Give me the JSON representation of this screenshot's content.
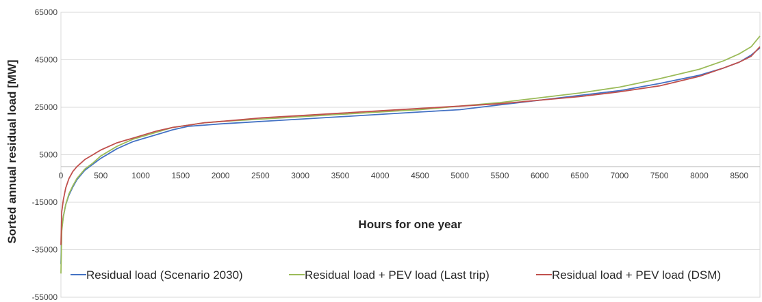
{
  "chart_data": {
    "type": "line",
    "xlabel": "Hours  for one year",
    "ylabel": "Sorted  annual residual load [MW]",
    "xlim": [
      0,
      8760
    ],
    "ylim": [
      -55000,
      65000
    ],
    "x_ticks": [
      0,
      500,
      1000,
      1500,
      2000,
      2500,
      3000,
      3500,
      4000,
      4500,
      5000,
      5500,
      6000,
      6500,
      7000,
      7500,
      8000,
      8500
    ],
    "y_ticks": [
      65000,
      45000,
      25000,
      5000,
      -15000,
      -35000,
      -55000
    ],
    "y_tick_labels": [
      "65000",
      "45000",
      "25000",
      "5000",
      "-15000",
      "-35000",
      "-55000"
    ],
    "grid": "horizontal",
    "legend_position": "bottom",
    "series": [
      {
        "name": "Residual load (Scenario 2030)",
        "color": "#4472C4",
        "x": [
          0,
          10,
          30,
          60,
          100,
          150,
          200,
          300,
          400,
          500,
          600,
          700,
          800,
          900,
          1000,
          1200,
          1400,
          1600,
          1800,
          2000,
          2500,
          3000,
          3500,
          4000,
          4500,
          5000,
          5500,
          6000,
          6500,
          7000,
          7500,
          8000,
          8300,
          8500,
          8650,
          8760
        ],
        "y": [
          -41000,
          -26000,
          -21000,
          -16000,
          -12000,
          -8500,
          -5500,
          -1500,
          1000,
          3500,
          5500,
          7500,
          9000,
          10500,
          11500,
          13500,
          15500,
          17000,
          17500,
          18000,
          19000,
          20000,
          21000,
          22000,
          23000,
          24000,
          26000,
          28000,
          30000,
          32000,
          35000,
          38500,
          41500,
          44000,
          47000,
          50000
        ]
      },
      {
        "name": "Residual load + PEV load (Last trip)",
        "color": "#9BBB59",
        "x": [
          0,
          10,
          30,
          60,
          100,
          150,
          200,
          300,
          400,
          500,
          600,
          700,
          800,
          900,
          1000,
          1200,
          1400,
          1600,
          1800,
          2000,
          2500,
          3000,
          3500,
          4000,
          4500,
          5000,
          5500,
          6000,
          6500,
          7000,
          7500,
          8000,
          8300,
          8500,
          8650,
          8760
        ],
        "y": [
          -45000,
          -27000,
          -21000,
          -16000,
          -11500,
          -8000,
          -5000,
          -1000,
          1500,
          4500,
          6500,
          8500,
          10000,
          11500,
          12500,
          14500,
          16500,
          17500,
          18500,
          19000,
          20000,
          21000,
          22000,
          23000,
          24000,
          25500,
          27000,
          29000,
          31000,
          33500,
          37000,
          41000,
          44500,
          47500,
          50500,
          55000
        ]
      },
      {
        "name": "Residual load + PEV load (DSM)",
        "color": "#C0504D",
        "x": [
          0,
          10,
          30,
          60,
          100,
          150,
          200,
          300,
          400,
          500,
          600,
          700,
          800,
          900,
          1000,
          1200,
          1400,
          1600,
          1800,
          2000,
          2500,
          3000,
          3500,
          4000,
          4500,
          5000,
          5500,
          6000,
          6500,
          7000,
          7500,
          8000,
          8300,
          8500,
          8650,
          8760
        ],
        "y": [
          -33000,
          -19000,
          -14000,
          -9000,
          -5000,
          -2000,
          0,
          3000,
          5000,
          7000,
          8500,
          10000,
          11000,
          12000,
          13000,
          15000,
          16500,
          17500,
          18500,
          19000,
          20500,
          21500,
          22500,
          23500,
          24500,
          25500,
          26500,
          28000,
          29500,
          31500,
          34000,
          38000,
          41500,
          44000,
          46500,
          50500
        ]
      }
    ]
  }
}
